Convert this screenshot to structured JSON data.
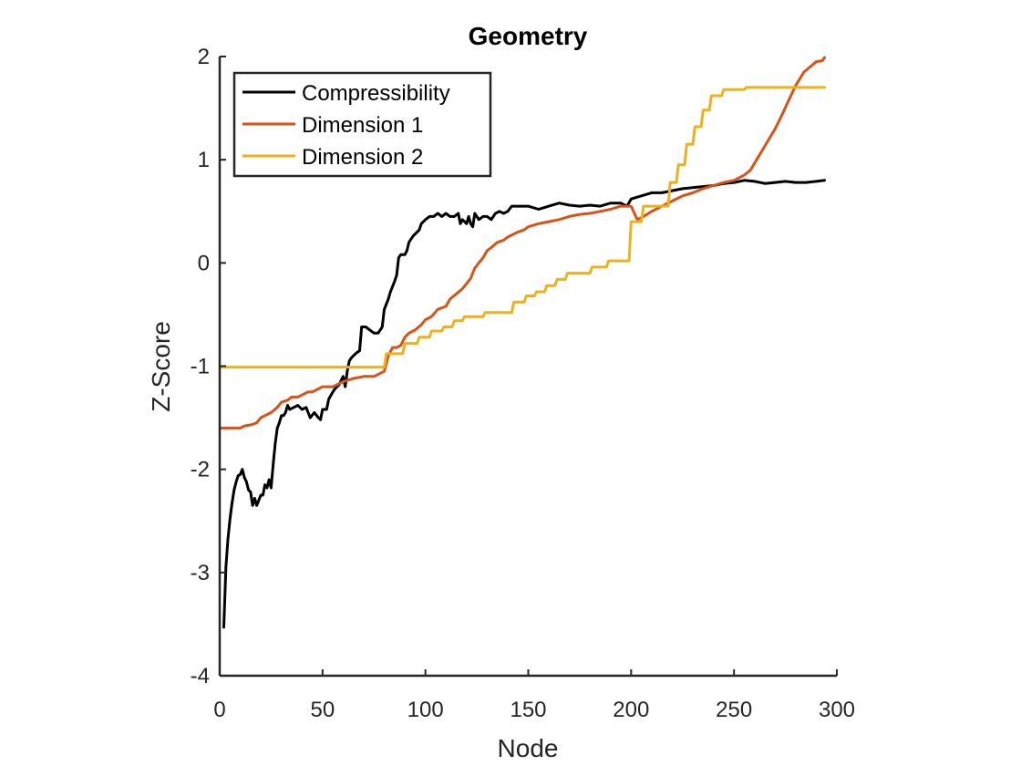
{
  "chart_data": {
    "type": "line",
    "title": "Geometry",
    "xlabel": "Node",
    "ylabel": "Z-Score",
    "xlim": [
      0,
      300
    ],
    "ylim": [
      -4,
      2
    ],
    "xticks": [
      0,
      50,
      100,
      150,
      200,
      250,
      300
    ],
    "yticks": [
      -4,
      -3,
      -2,
      -1,
      0,
      1,
      2
    ],
    "ytick_labels": [
      "-4",
      "-3",
      "-2",
      "-1",
      "0",
      "1",
      "2"
    ],
    "xtick_labels": [
      "0",
      "50",
      "100",
      "150",
      "200",
      "250",
      "300"
    ],
    "grid": false,
    "legend_position": "top-left",
    "series": [
      {
        "name": "Compressibility",
        "color": "#000000",
        "points": [
          [
            2,
            -3.53
          ],
          [
            3,
            -2.95
          ],
          [
            4,
            -2.68
          ],
          [
            5,
            -2.48
          ],
          [
            6,
            -2.33
          ],
          [
            7,
            -2.2
          ],
          [
            8,
            -2.12
          ],
          [
            9,
            -2.06
          ],
          [
            10,
            -2.05
          ],
          [
            11,
            -2.0
          ],
          [
            12,
            -2.08
          ],
          [
            13,
            -2.12
          ],
          [
            14,
            -2.2
          ],
          [
            15,
            -2.22
          ],
          [
            16,
            -2.35
          ],
          [
            17,
            -2.28
          ],
          [
            18,
            -2.35
          ],
          [
            19,
            -2.3
          ],
          [
            20,
            -2.25
          ],
          [
            21,
            -2.25
          ],
          [
            22,
            -2.15
          ],
          [
            23,
            -2.18
          ],
          [
            24,
            -2.1
          ],
          [
            25,
            -2.18
          ],
          [
            26,
            -1.95
          ],
          [
            27,
            -1.75
          ],
          [
            28,
            -1.6
          ],
          [
            29,
            -1.55
          ],
          [
            30,
            -1.48
          ],
          [
            31,
            -1.48
          ],
          [
            32,
            -1.45
          ],
          [
            33,
            -1.38
          ],
          [
            34,
            -1.42
          ],
          [
            36,
            -1.4
          ],
          [
            38,
            -1.38
          ],
          [
            40,
            -1.42
          ],
          [
            42,
            -1.4
          ],
          [
            44,
            -1.5
          ],
          [
            46,
            -1.45
          ],
          [
            48,
            -1.5
          ],
          [
            49,
            -1.52
          ],
          [
            50,
            -1.42
          ],
          [
            52,
            -1.42
          ],
          [
            53,
            -1.32
          ],
          [
            55,
            -1.25
          ],
          [
            56,
            -1.22
          ],
          [
            58,
            -1.18
          ],
          [
            60,
            -1.1
          ],
          [
            61,
            -1.2
          ],
          [
            62,
            -1.05
          ],
          [
            63,
            -0.95
          ],
          [
            64,
            -0.92
          ],
          [
            66,
            -0.88
          ],
          [
            68,
            -0.85
          ],
          [
            69,
            -0.62
          ],
          [
            71,
            -0.62
          ],
          [
            73,
            -0.65
          ],
          [
            75,
            -0.68
          ],
          [
            77,
            -0.68
          ],
          [
            79,
            -0.62
          ],
          [
            80,
            -0.45
          ],
          [
            82,
            -0.35
          ],
          [
            83,
            -0.28
          ],
          [
            85,
            -0.18
          ],
          [
            86,
            -0.12
          ],
          [
            87,
            0.05
          ],
          [
            88,
            0.08
          ],
          [
            90,
            0.08
          ],
          [
            91,
            0.12
          ],
          [
            92,
            0.2
          ],
          [
            94,
            0.26
          ],
          [
            95,
            0.28
          ],
          [
            96,
            0.3
          ],
          [
            97,
            0.32
          ],
          [
            98,
            0.38
          ],
          [
            100,
            0.42
          ],
          [
            102,
            0.45
          ],
          [
            104,
            0.45
          ],
          [
            106,
            0.48
          ],
          [
            108,
            0.45
          ],
          [
            110,
            0.48
          ],
          [
            112,
            0.45
          ],
          [
            114,
            0.45
          ],
          [
            116,
            0.48
          ],
          [
            117,
            0.38
          ],
          [
            118,
            0.42
          ],
          [
            120,
            0.38
          ],
          [
            121,
            0.45
          ],
          [
            122,
            0.38
          ],
          [
            123,
            0.35
          ],
          [
            124,
            0.48
          ],
          [
            126,
            0.42
          ],
          [
            128,
            0.45
          ],
          [
            130,
            0.45
          ],
          [
            132,
            0.42
          ],
          [
            134,
            0.48
          ],
          [
            136,
            0.5
          ],
          [
            138,
            0.48
          ],
          [
            140,
            0.5
          ],
          [
            142,
            0.55
          ],
          [
            146,
            0.55
          ],
          [
            150,
            0.55
          ],
          [
            155,
            0.52
          ],
          [
            160,
            0.55
          ],
          [
            165,
            0.58
          ],
          [
            170,
            0.56
          ],
          [
            175,
            0.55
          ],
          [
            180,
            0.56
          ],
          [
            185,
            0.55
          ],
          [
            190,
            0.58
          ],
          [
            195,
            0.58
          ],
          [
            198,
            0.55
          ],
          [
            200,
            0.62
          ],
          [
            205,
            0.65
          ],
          [
            210,
            0.68
          ],
          [
            215,
            0.68
          ],
          [
            220,
            0.7
          ],
          [
            225,
            0.72
          ],
          [
            230,
            0.73
          ],
          [
            235,
            0.74
          ],
          [
            240,
            0.75
          ],
          [
            245,
            0.77
          ],
          [
            250,
            0.78
          ],
          [
            255,
            0.8
          ],
          [
            260,
            0.79
          ],
          [
            265,
            0.77
          ],
          [
            270,
            0.78
          ],
          [
            275,
            0.79
          ],
          [
            280,
            0.78
          ],
          [
            285,
            0.78
          ],
          [
            290,
            0.79
          ],
          [
            294,
            0.8
          ]
        ]
      },
      {
        "name": "Dimension 1",
        "color": "#D95319",
        "points": [
          [
            0,
            -1.6
          ],
          [
            5,
            -1.6
          ],
          [
            10,
            -1.6
          ],
          [
            12,
            -1.58
          ],
          [
            15,
            -1.57
          ],
          [
            18,
            -1.55
          ],
          [
            20,
            -1.5
          ],
          [
            22,
            -1.48
          ],
          [
            25,
            -1.45
          ],
          [
            28,
            -1.4
          ],
          [
            30,
            -1.35
          ],
          [
            33,
            -1.33
          ],
          [
            35,
            -1.3
          ],
          [
            38,
            -1.3
          ],
          [
            40,
            -1.28
          ],
          [
            43,
            -1.25
          ],
          [
            45,
            -1.25
          ],
          [
            48,
            -1.22
          ],
          [
            50,
            -1.2
          ],
          [
            55,
            -1.2
          ],
          [
            60,
            -1.15
          ],
          [
            65,
            -1.12
          ],
          [
            70,
            -1.1
          ],
          [
            75,
            -1.1
          ],
          [
            80,
            -1.05
          ],
          [
            82,
            -0.9
          ],
          [
            84,
            -0.82
          ],
          [
            86,
            -0.82
          ],
          [
            88,
            -0.8
          ],
          [
            90,
            -0.72
          ],
          [
            92,
            -0.68
          ],
          [
            95,
            -0.65
          ],
          [
            98,
            -0.6
          ],
          [
            100,
            -0.55
          ],
          [
            103,
            -0.52
          ],
          [
            106,
            -0.45
          ],
          [
            110,
            -0.42
          ],
          [
            112,
            -0.35
          ],
          [
            115,
            -0.3
          ],
          [
            118,
            -0.25
          ],
          [
            120,
            -0.2
          ],
          [
            122,
            -0.15
          ],
          [
            124,
            -0.05
          ],
          [
            126,
            0.0
          ],
          [
            128,
            0.05
          ],
          [
            130,
            0.12
          ],
          [
            132,
            0.15
          ],
          [
            135,
            0.2
          ],
          [
            138,
            0.22
          ],
          [
            140,
            0.25
          ],
          [
            143,
            0.28
          ],
          [
            145,
            0.3
          ],
          [
            148,
            0.32
          ],
          [
            150,
            0.35
          ],
          [
            155,
            0.38
          ],
          [
            160,
            0.4
          ],
          [
            165,
            0.42
          ],
          [
            170,
            0.45
          ],
          [
            175,
            0.47
          ],
          [
            180,
            0.48
          ],
          [
            185,
            0.5
          ],
          [
            190,
            0.52
          ],
          [
            195,
            0.55
          ],
          [
            200,
            0.55
          ],
          [
            203,
            0.42
          ],
          [
            206,
            0.45
          ],
          [
            210,
            0.5
          ],
          [
            215,
            0.55
          ],
          [
            220,
            0.6
          ],
          [
            225,
            0.65
          ],
          [
            230,
            0.68
          ],
          [
            235,
            0.72
          ],
          [
            240,
            0.75
          ],
          [
            245,
            0.78
          ],
          [
            250,
            0.8
          ],
          [
            255,
            0.85
          ],
          [
            258,
            0.9
          ],
          [
            261,
            1.0
          ],
          [
            264,
            1.1
          ],
          [
            267,
            1.2
          ],
          [
            270,
            1.3
          ],
          [
            273,
            1.42
          ],
          [
            276,
            1.55
          ],
          [
            280,
            1.72
          ],
          [
            284,
            1.85
          ],
          [
            287,
            1.9
          ],
          [
            290,
            1.95
          ],
          [
            293,
            1.96
          ],
          [
            294,
            1.99
          ]
        ]
      },
      {
        "name": "Dimension 2",
        "color": "#EDB120",
        "points": [
          [
            0,
            -1.01
          ],
          [
            80,
            -1.01
          ],
          [
            81,
            -0.88
          ],
          [
            89,
            -0.88
          ],
          [
            90,
            -0.78
          ],
          [
            96,
            -0.78
          ],
          [
            97,
            -0.72
          ],
          [
            102,
            -0.72
          ],
          [
            103,
            -0.66
          ],
          [
            108,
            -0.66
          ],
          [
            109,
            -0.62
          ],
          [
            113,
            -0.62
          ],
          [
            114,
            -0.56
          ],
          [
            118,
            -0.56
          ],
          [
            119,
            -0.52
          ],
          [
            128,
            -0.52
          ],
          [
            129,
            -0.48
          ],
          [
            142,
            -0.48
          ],
          [
            143,
            -0.38
          ],
          [
            148,
            -0.38
          ],
          [
            149,
            -0.32
          ],
          [
            153,
            -0.32
          ],
          [
            154,
            -0.28
          ],
          [
            158,
            -0.28
          ],
          [
            159,
            -0.22
          ],
          [
            163,
            -0.22
          ],
          [
            164,
            -0.16
          ],
          [
            168,
            -0.16
          ],
          [
            169,
            -0.1
          ],
          [
            180,
            -0.1
          ],
          [
            181,
            -0.04
          ],
          [
            188,
            -0.04
          ],
          [
            189,
            0.02
          ],
          [
            199,
            0.02
          ],
          [
            200,
            0.4
          ],
          [
            205,
            0.4
          ],
          [
            206,
            0.55
          ],
          [
            218,
            0.55
          ],
          [
            219,
            0.78
          ],
          [
            222,
            0.78
          ],
          [
            223,
            0.95
          ],
          [
            226,
            0.95
          ],
          [
            227,
            1.15
          ],
          [
            230,
            1.15
          ],
          [
            231,
            1.32
          ],
          [
            234,
            1.32
          ],
          [
            235,
            1.48
          ],
          [
            238,
            1.48
          ],
          [
            239,
            1.62
          ],
          [
            244,
            1.62
          ],
          [
            245,
            1.68
          ],
          [
            255,
            1.68
          ],
          [
            256,
            1.7
          ],
          [
            294,
            1.7
          ]
        ]
      }
    ]
  }
}
